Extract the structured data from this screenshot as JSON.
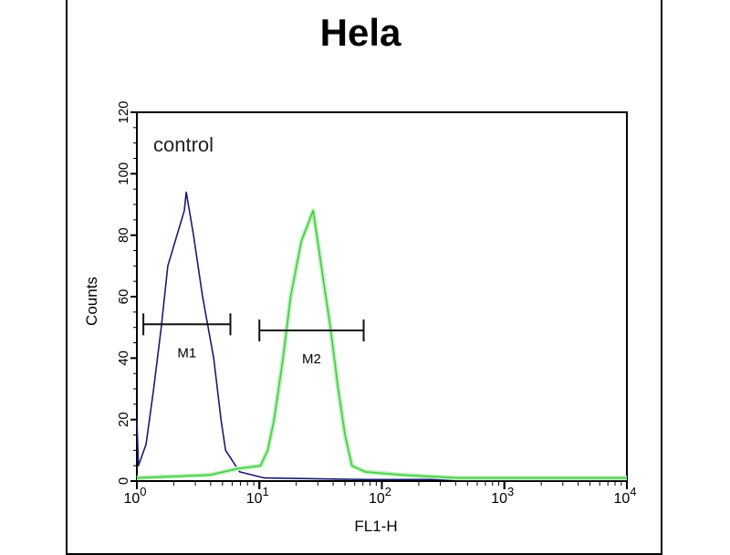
{
  "chart_data": {
    "type": "line",
    "title": "Hela",
    "xlabel": "FL1-H",
    "ylabel": "Counts",
    "x_scale": "log",
    "xlim": [
      1,
      10000
    ],
    "ylim": [
      0,
      120
    ],
    "x_ticks": [
      {
        "base": "10",
        "exp": "0",
        "value": 1
      },
      {
        "base": "10",
        "exp": "1",
        "value": 10
      },
      {
        "base": "10",
        "exp": "2",
        "value": 100
      },
      {
        "base": "10",
        "exp": "3",
        "value": 1000
      },
      {
        "base": "10",
        "exp": "4",
        "value": 10000
      }
    ],
    "y_ticks": [
      "0",
      "20",
      "40",
      "60",
      "80",
      "100",
      "120"
    ],
    "annotation": "control",
    "series": [
      {
        "color": "#1a1a6e",
        "x": [
          1,
          1.03,
          1.19,
          1.37,
          1.58,
          1.79,
          2.44,
          2.53,
          2.9,
          3.44,
          4.24,
          4.86,
          5.3,
          6.9,
          11,
          73,
          10000
        ],
        "y": [
          20,
          5,
          12,
          30,
          50,
          70,
          88,
          94,
          80,
          60,
          40,
          20,
          10,
          3,
          1,
          0.5,
          0.5
        ]
      },
      {
        "color": "#44cc44",
        "x": [
          1,
          3.95,
          6.6,
          10.2,
          11.7,
          13.2,
          15.6,
          18,
          22,
          27.5,
          32,
          38,
          44,
          50,
          57,
          73,
          146,
          410,
          10000
        ],
        "y": [
          1,
          2,
          4,
          5,
          10,
          20,
          40,
          60,
          78,
          88,
          70,
          50,
          30,
          15,
          5,
          3,
          2,
          1,
          1
        ]
      }
    ],
    "markers": [
      {
        "label": "M1",
        "x_start": 1.13,
        "x_end": 5.8,
        "y": 51
      },
      {
        "label": "M2",
        "x_start": 10,
        "x_end": 71,
        "y": 49
      }
    ]
  }
}
